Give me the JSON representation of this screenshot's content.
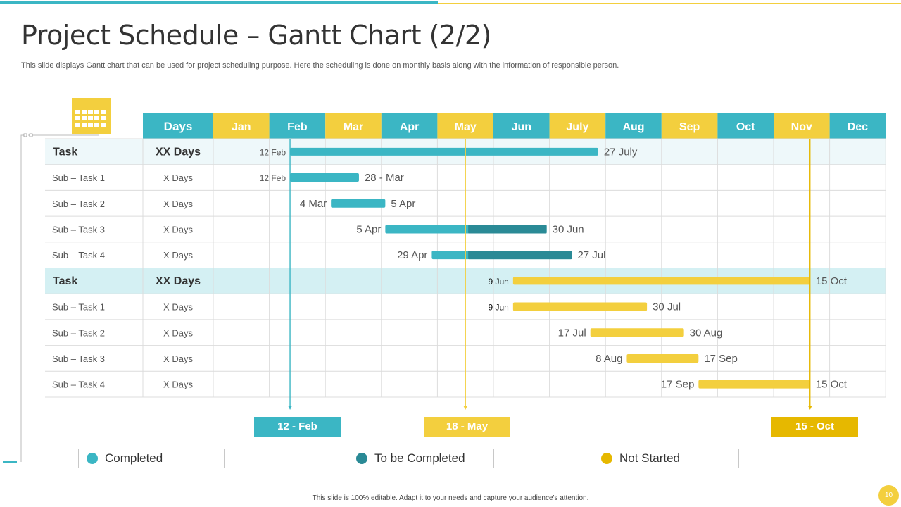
{
  "page": {
    "title": "Project Schedule – Gantt Chart (2/2)",
    "subtitle": "This slide displays Gantt chart that can be used for project scheduling purpose. Here the scheduling is done on monthly basis along with the information of responsible person.",
    "footer": "This slide is 100% editable.  Adapt it to your needs and capture your audience's attention.",
    "page_number": "10"
  },
  "colors": {
    "teal": "#3bb6c4",
    "dark_teal": "#2a8a96",
    "yellow": "#f3cf3e",
    "gold": "#e6b800"
  },
  "legend": [
    {
      "label": "Completed",
      "color": "#3bb6c4"
    },
    {
      "label": "To be Completed",
      "color": "#2a8a96"
    },
    {
      "label": "Not Started",
      "color": "#e6b800"
    }
  ],
  "milestones": [
    {
      "label": "12 - Feb",
      "color": "#3bb6c4"
    },
    {
      "label": "18 - May",
      "color": "#f3cf3e"
    },
    {
      "label": "15 - Oct",
      "color": "#e6b800"
    }
  ],
  "chart_data": {
    "type": "gantt",
    "header_label": "Days",
    "months": [
      "Jan",
      "Feb",
      "Mar",
      "Apr",
      "May",
      "Jun",
      "July",
      "Aug",
      "Sep",
      "Oct",
      "Nov",
      "Dec"
    ],
    "rows": [
      {
        "name": "Task",
        "days": "XX Days",
        "kind": "task",
        "group": 1,
        "start": "12 Feb",
        "end": "27 July",
        "start_m": 1.37,
        "end_m": 6.87,
        "completed_until_m": null,
        "color": "teal"
      },
      {
        "name": "Sub – Task 1",
        "days": "X Days",
        "kind": "sub",
        "group": 1,
        "start": "12 Feb",
        "end": "28 - Mar",
        "start_m": 1.37,
        "end_m": 2.6,
        "completed_until_m": null,
        "color": "teal"
      },
      {
        "name": "Sub – Task 2",
        "days": "X Days",
        "kind": "sub",
        "group": 1,
        "start": "4 Mar",
        "end": "5 Apr",
        "start_m": 2.1,
        "end_m": 3.07,
        "completed_until_m": null,
        "color": "teal"
      },
      {
        "name": "Sub – Task 3",
        "days": "X Days",
        "kind": "sub",
        "group": 1,
        "start": "5 Apr",
        "end": "30 Jun",
        "start_m": 3.07,
        "end_m": 5.95,
        "completed_until_m": 4.55,
        "color": "teal"
      },
      {
        "name": "Sub – Task 4",
        "days": "X Days",
        "kind": "sub",
        "group": 1,
        "start": "29 Apr",
        "end": "27 Jul",
        "start_m": 3.9,
        "end_m": 6.4,
        "completed_until_m": 4.55,
        "color": "teal"
      },
      {
        "name": "Task",
        "days": "XX Days",
        "kind": "task",
        "group": 2,
        "start": "9 Jun",
        "end": "15 Oct",
        "start_m": 5.35,
        "end_m": 10.65,
        "completed_until_m": null,
        "color": "yellow"
      },
      {
        "name": "Sub – Task 1",
        "days": "X Days",
        "kind": "sub",
        "group": 2,
        "start": "9 Jun",
        "end": "30 Jul",
        "start_m": 5.35,
        "end_m": 7.74,
        "completed_until_m": null,
        "color": "yellow"
      },
      {
        "name": "Sub – Task 2",
        "days": "X Days",
        "kind": "sub",
        "group": 2,
        "start": "17 Jul",
        "end": "30 Aug",
        "start_m": 6.73,
        "end_m": 8.4,
        "completed_until_m": null,
        "color": "yellow"
      },
      {
        "name": "Sub – Task 3",
        "days": "X Days",
        "kind": "sub",
        "group": 2,
        "start": "8 Aug",
        "end": "17 Sep",
        "start_m": 7.38,
        "end_m": 8.66,
        "completed_until_m": null,
        "color": "yellow"
      },
      {
        "name": "Sub – Task 4",
        "days": "X Days",
        "kind": "sub",
        "group": 2,
        "start": "17 Sep",
        "end": "15 Oct",
        "start_m": 8.66,
        "end_m": 10.65,
        "completed_until_m": null,
        "color": "yellow"
      }
    ],
    "milestone_months": [
      1.37,
      4.5,
      10.65
    ]
  }
}
